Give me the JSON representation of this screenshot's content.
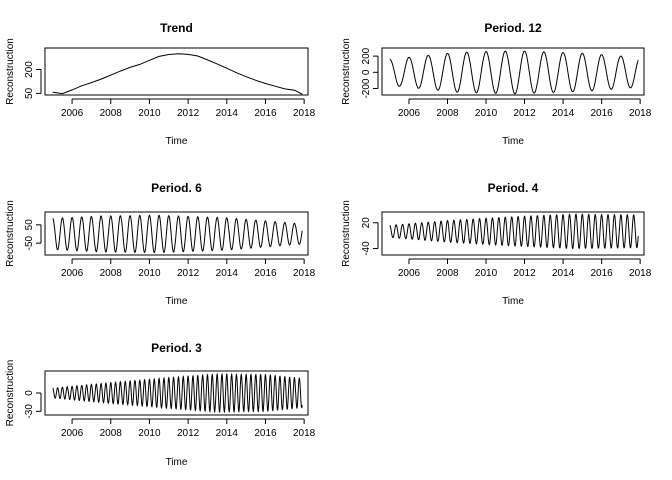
{
  "chart_data": [
    {
      "type": "line",
      "title": "Trend",
      "xlabel": "Time",
      "ylabel": "Reconstruction",
      "xlim": [
        2004.6,
        2018.2
      ],
      "ylim": [
        40,
        335
      ],
      "xticks": [
        2006,
        2008,
        2010,
        2012,
        2014,
        2016,
        2018
      ],
      "xtick_labels": [
        "2006",
        "2008",
        "2010",
        "2012",
        "2014",
        "2016",
        "2018"
      ],
      "yticks": [
        50,
        200
      ],
      "ytick_labels": [
        "50",
        "200"
      ],
      "series": [
        {
          "x": [
            2005.0,
            2005.5,
            2006.0,
            2006.5,
            2007.0,
            2007.5,
            2008.0,
            2008.5,
            2009.0,
            2009.5,
            2010.0,
            2010.5,
            2011.0,
            2011.5,
            2012.0,
            2012.5,
            2013.0,
            2013.5,
            2014.0,
            2014.5,
            2015.0,
            2015.5,
            2016.0,
            2016.5,
            2017.0,
            2017.5,
            2017.9
          ],
          "y": [
            57,
            49,
            72,
            98,
            118,
            140,
            165,
            190,
            213,
            232,
            258,
            282,
            294,
            299,
            295,
            285,
            260,
            235,
            208,
            180,
            155,
            132,
            112,
            95,
            78,
            70,
            45
          ]
        }
      ]
    },
    {
      "type": "line",
      "title": "Period. 12",
      "xlabel": "Time",
      "ylabel": "Reconstruction",
      "xlim": [
        2004.6,
        2018.2
      ],
      "ylim": [
        -280,
        300
      ],
      "xticks": [
        2006,
        2008,
        2010,
        2012,
        2014,
        2016,
        2018
      ],
      "xtick_labels": [
        "2006",
        "2008",
        "2010",
        "2012",
        "2014",
        "2016",
        "2018"
      ],
      "yticks": [
        -200,
        0,
        200
      ],
      "ytick_labels": [
        "-200",
        "0",
        "200"
      ],
      "series": [
        {
          "period": 1.0,
          "phase": 2005.0,
          "x_start": 2005.0,
          "x_end": 2017.9,
          "amplitude": {
            "x": [
              2005.0,
              2008.5,
              2011.5,
              2015.0,
              2017.9
            ],
            "y": [
              160,
              245,
              265,
              235,
              185
            ]
          }
        }
      ]
    },
    {
      "type": "line",
      "title": "Period. 6",
      "xlabel": "Time",
      "ylabel": "Reconstruction",
      "xlim": [
        2004.6,
        2018.2
      ],
      "ylim": [
        -115,
        120
      ],
      "xticks": [
        2006,
        2008,
        2010,
        2012,
        2014,
        2016,
        2018
      ],
      "xtick_labels": [
        "2006",
        "2008",
        "2010",
        "2012",
        "2014",
        "2016",
        "2018"
      ],
      "yticks": [
        -50,
        50
      ],
      "ytick_labels": [
        "-50",
        "50"
      ],
      "series": [
        {
          "period": 0.5,
          "phase": 2005.0,
          "x_start": 2005.0,
          "x_end": 2017.9,
          "amplitude": {
            "x": [
              2005.0,
              2007.5,
              2010.5,
              2014.0,
              2017.9
            ],
            "y": [
              85,
              98,
              102,
              88,
              55
            ]
          }
        }
      ]
    },
    {
      "type": "line",
      "title": "Period. 4",
      "xlabel": "Time",
      "ylabel": "Reconstruction",
      "xlim": [
        2004.6,
        2018.2
      ],
      "ylim": [
        -55,
        45
      ],
      "xticks": [
        2006,
        2008,
        2010,
        2012,
        2014,
        2016,
        2018
      ],
      "xtick_labels": [
        "2006",
        "2008",
        "2010",
        "2012",
        "2014",
        "2016",
        "2018"
      ],
      "yticks": [
        -40,
        20
      ],
      "ytick_labels": [
        "-40",
        "20"
      ],
      "series": [
        {
          "period": 0.3333,
          "phase": 2005.0,
          "x_start": 2005.0,
          "x_end": 2017.9,
          "amplitude": {
            "x": [
              2005.0,
              2008.0,
              2011.0,
              2014.5,
              2017.9
            ],
            "y": [
              14,
              25,
              33,
              40,
              38
            ]
          }
        }
      ]
    },
    {
      "type": "line",
      "title": "Period. 3",
      "xlabel": "Time",
      "ylabel": "Reconstruction",
      "xlim": [
        2004.6,
        2018.2
      ],
      "ylim": [
        -36,
        36
      ],
      "xticks": [
        2006,
        2008,
        2010,
        2012,
        2014,
        2016,
        2018
      ],
      "xtick_labels": [
        "2006",
        "2008",
        "2010",
        "2012",
        "2014",
        "2016",
        "2018"
      ],
      "yticks": [
        -30,
        0
      ],
      "ytick_labels": [
        "-30",
        "0"
      ],
      "series": [
        {
          "period": 0.25,
          "phase": 2005.0,
          "x_start": 2005.0,
          "x_end": 2017.9,
          "amplitude": {
            "x": [
              2005.0,
              2008.0,
              2011.0,
              2013.5,
              2016.0,
              2017.9
            ],
            "y": [
              8,
              17,
              25,
              31,
              30,
              24
            ]
          }
        }
      ]
    }
  ]
}
